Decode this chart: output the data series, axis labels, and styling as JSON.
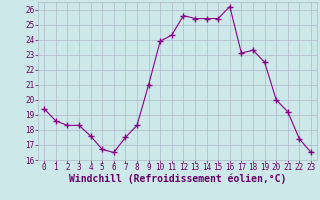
{
  "x": [
    0,
    1,
    2,
    3,
    4,
    5,
    6,
    7,
    8,
    9,
    10,
    11,
    12,
    13,
    14,
    15,
    16,
    17,
    18,
    19,
    20,
    21,
    22,
    23
  ],
  "y": [
    19.4,
    18.6,
    18.3,
    18.3,
    17.6,
    16.7,
    16.5,
    17.5,
    18.3,
    21.0,
    23.9,
    24.3,
    25.6,
    25.4,
    25.4,
    25.4,
    26.2,
    23.1,
    23.3,
    22.5,
    20.0,
    19.2,
    17.4,
    16.5
  ],
  "line_color": "#8B008B",
  "marker": "+",
  "marker_size": 4,
  "xlabel": "Windchill (Refroidissement éolien,°C)",
  "ylim": [
    16,
    26.5
  ],
  "xlim": [
    -0.5,
    23.5
  ],
  "yticks": [
    16,
    17,
    18,
    19,
    20,
    21,
    22,
    23,
    24,
    25,
    26
  ],
  "xticks": [
    0,
    1,
    2,
    3,
    4,
    5,
    6,
    7,
    8,
    9,
    10,
    11,
    12,
    13,
    14,
    15,
    16,
    17,
    18,
    19,
    20,
    21,
    22,
    23
  ],
  "bg_color": "#cce8e8",
  "grid_color": "#b0b8cc",
  "label_color": "#660066",
  "tick_fontsize": 5.5,
  "xlabel_fontsize": 7.0
}
